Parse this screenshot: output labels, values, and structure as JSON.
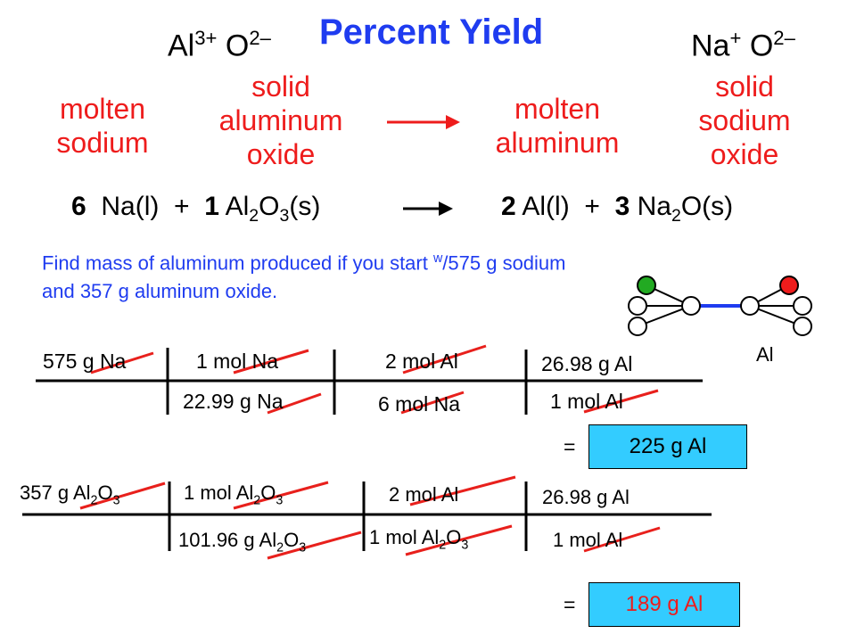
{
  "title": "Percent Yield",
  "ions_left": {
    "cation": "Al",
    "cation_charge": "3+",
    "anion": "O",
    "anion_charge": "2–"
  },
  "ions_right": {
    "cation": "Na",
    "cation_charge": "+",
    "anion": "O",
    "anion_charge": "2–"
  },
  "labels": {
    "molten_sodium": [
      "molten",
      "sodium"
    ],
    "solid_aluminum_oxide": [
      "solid",
      "aluminum",
      "oxide"
    ],
    "molten_aluminum": [
      "molten",
      "aluminum"
    ],
    "solid_sodium_oxide": [
      "solid",
      "sodium",
      "oxide"
    ]
  },
  "equation": {
    "coef1": "6",
    "reactant1": "Na(l)",
    "plus1": "+",
    "coef2": "1",
    "reactant2_a": "Al",
    "reactant2_sub1": "2",
    "reactant2_b": "O",
    "reactant2_sub2": "3",
    "reactant2_c": "(s)",
    "coef3": "2",
    "product1": "Al(l)",
    "plus2": "+",
    "coef4": "3",
    "product2_a": "Na",
    "product2_sub": "2",
    "product2_b": "O(s)"
  },
  "problem": {
    "line1_a": "Find mass of aluminum produced if you start ",
    "line1_sup": "w",
    "line1_b": "/575 g sodium",
    "line2": "and 357 g aluminum oxide."
  },
  "diagram_label": "Al",
  "calc1": {
    "given": "575 g Na",
    "n1": "1 mol Na",
    "d1": "22.99 g Na",
    "n2": "2 mol Al",
    "d2": "6 mol Na",
    "n3": "26.98 g Al",
    "d3": "1 mol Al",
    "equals": "=",
    "result": "225 g Al"
  },
  "calc2": {
    "given_a": "357 g Al",
    "given_sub1": "2",
    "given_b": "O",
    "given_sub2": "3",
    "n1_a": "1 mol Al",
    "n1_sub1": "2",
    "n1_b": "O",
    "n1_sub2": "3",
    "d1_a": "101.96 g Al",
    "d1_sub1": "2",
    "d1_b": "O",
    "d1_sub2": "3",
    "n2": "2 mol Al",
    "d2_a": "1 mol Al",
    "d2_sub1": "2",
    "d2_b": "O",
    "d2_sub2": "3",
    "n3": "26.98 g Al",
    "d3": "1 mol Al",
    "equals": "=",
    "result": "189 g Al"
  },
  "colors": {
    "title": "#1f3cf0",
    "labels": "#ee1c1c",
    "box": "#33ccff",
    "cancel": "#e8201c",
    "node_green": "#22aa22",
    "node_red": "#ee1c1c"
  }
}
